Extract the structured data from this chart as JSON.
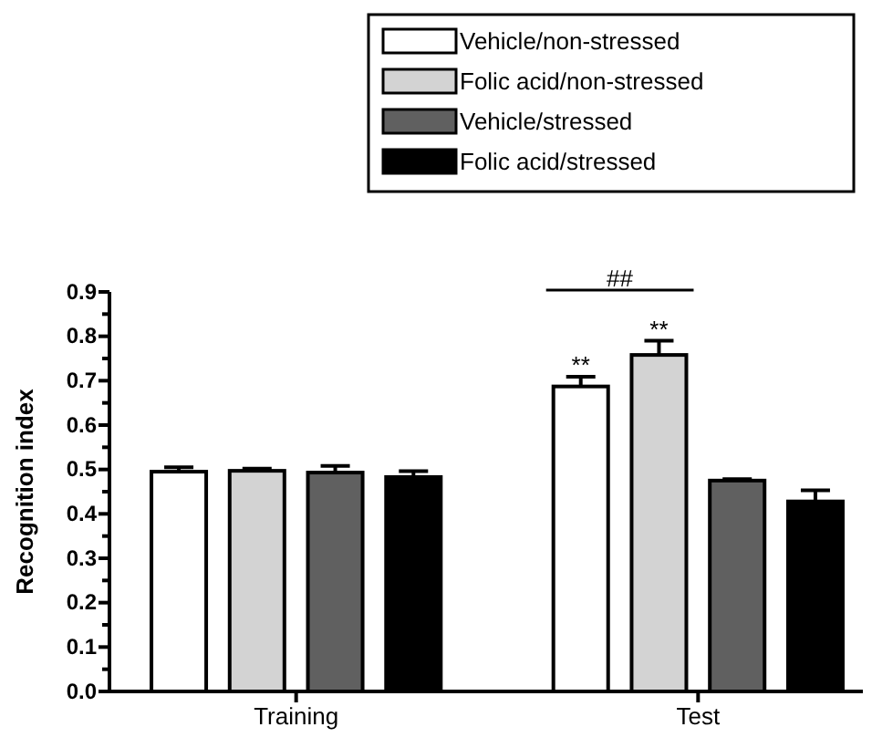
{
  "chart_data": {
    "type": "bar",
    "ylabel": "Recognition index",
    "categories": [
      "Training",
      "Test"
    ],
    "series": [
      {
        "name": "Vehicle/non-stressed",
        "color": "#ffffff",
        "values": [
          0.495,
          0.687
        ],
        "errors": [
          0.01,
          0.022
        ]
      },
      {
        "name": "Folic acid/non-stressed",
        "color": "#d3d3d3",
        "values": [
          0.497,
          0.758
        ],
        "errors": [
          0.005,
          0.032
        ]
      },
      {
        "name": "Vehicle/stressed",
        "color": "#606060",
        "values": [
          0.493,
          0.475
        ],
        "errors": [
          0.015,
          0.003
        ]
      },
      {
        "name": "Folic acid/stressed",
        "color": "#000000",
        "values": [
          0.483,
          0.428
        ],
        "errors": [
          0.013,
          0.025
        ]
      }
    ],
    "ylim": [
      0,
      0.9
    ],
    "yticks": [
      {
        "value": 0,
        "label": "0.0"
      },
      {
        "value": 0.05,
        "label": null
      },
      0.1,
      {
        "value": 0.15,
        "label": null
      },
      0.2,
      {
        "value": 0.25,
        "label": null
      },
      0.3,
      {
        "value": 0.35,
        "label": null
      },
      0.4,
      {
        "value": 0.45,
        "label": null
      },
      0.5,
      {
        "value": 0.55,
        "label": null
      },
      0.6,
      {
        "value": 0.65,
        "label": null
      },
      0.7,
      {
        "value": 0.75,
        "label": null
      },
      0.8,
      {
        "value": 0.85,
        "label": null
      },
      0.9
    ],
    "annotations": [
      "**",
      "**",
      "##"
    ],
    "legend": "top right"
  }
}
